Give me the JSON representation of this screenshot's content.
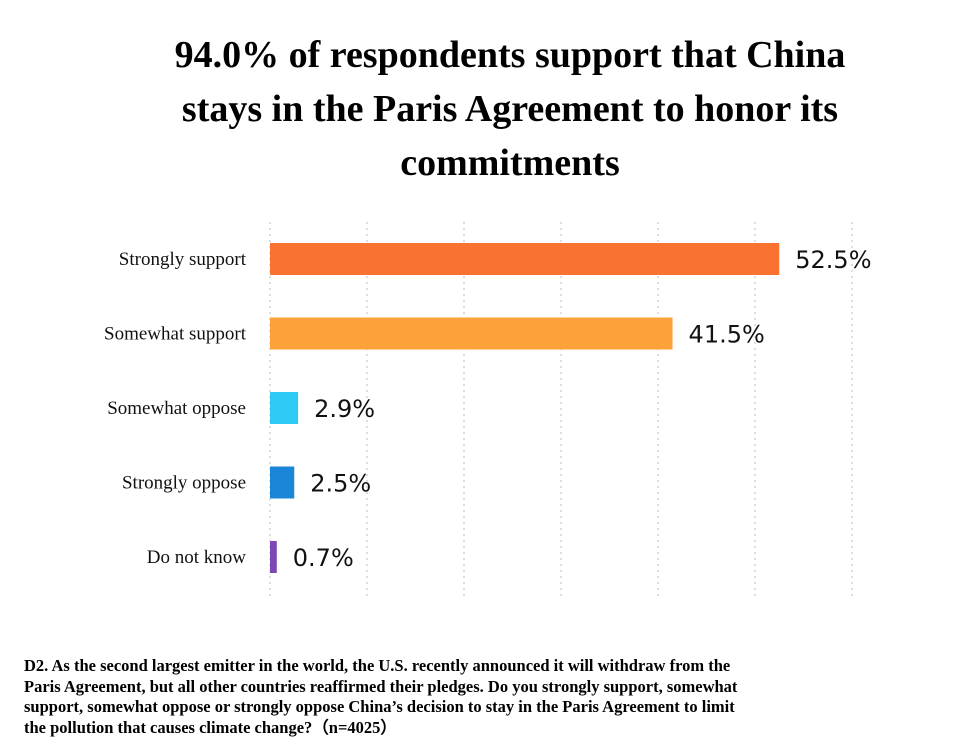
{
  "title_lines": [
    "94.0% of respondents support that China",
    "stays in the Paris Agreement to honor its",
    "commitments"
  ],
  "chart_data": {
    "type": "bar",
    "orientation": "horizontal",
    "title": "94.0% of respondents support that China stays in the Paris Agreement to honor its commitments",
    "categories": [
      "Strongly support",
      "Somewhat support",
      "Somewhat oppose",
      "Strongly oppose",
      "Do not know"
    ],
    "values": [
      52.5,
      41.5,
      2.9,
      2.5,
      0.7
    ],
    "value_labels": [
      "52.5%",
      "41.5%",
      "2.9%",
      "2.5%",
      "0.7%"
    ],
    "colors": [
      "#fa7232",
      "#fca23a",
      "#2fc9f5",
      "#1a86d8",
      "#7a4ab2"
    ],
    "xlim": [
      0,
      60
    ],
    "gridlines": true,
    "grid_style": "dotted-vertical",
    "tick_labels_shown": false
  },
  "footnote_lines": [
    "D2. As the second largest emitter in the world, the U.S. recently announced it will withdraw from the",
    "Paris Agreement, but all other countries reaffirmed their pledges. Do you strongly support, somewhat",
    "support, somewhat oppose or strongly oppose China’s decision to stay in the Paris Agreement to limit",
    "the pollution that causes climate change?（n=4025）"
  ]
}
